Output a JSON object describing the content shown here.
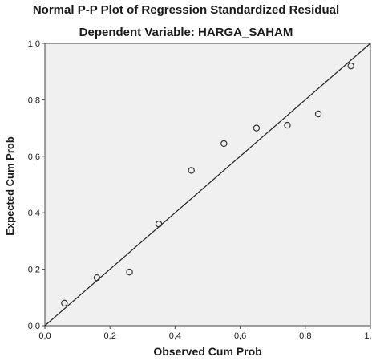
{
  "chart_data": {
    "type": "scatter",
    "title": "Normal P-P Plot of Regression Standardized Residual",
    "subtitle": "Dependent Variable: HARGA_SAHAM",
    "xlabel": "Observed Cum Prob",
    "ylabel": "Expected Cum Prob",
    "xlim": [
      0,
      1
    ],
    "ylim": [
      0,
      1
    ],
    "xticks": [
      "0,0",
      "0,2",
      "0,4",
      "0,6",
      "0,8",
      "1,0"
    ],
    "yticks": [
      "0,0",
      "0,2",
      "0,4",
      "0,6",
      "0,8",
      "1,0"
    ],
    "grid": false,
    "reference_line": {
      "from": [
        0,
        0
      ],
      "to": [
        1,
        1
      ]
    },
    "points": [
      {
        "x": 0.06,
        "y": 0.08
      },
      {
        "x": 0.16,
        "y": 0.17
      },
      {
        "x": 0.26,
        "y": 0.19
      },
      {
        "x": 0.35,
        "y": 0.36
      },
      {
        "x": 0.45,
        "y": 0.55
      },
      {
        "x": 0.55,
        "y": 0.645
      },
      {
        "x": 0.65,
        "y": 0.7
      },
      {
        "x": 0.745,
        "y": 0.71
      },
      {
        "x": 0.84,
        "y": 0.75
      },
      {
        "x": 0.94,
        "y": 0.92
      }
    ],
    "colors": {
      "plot_background": "#f0f0f0",
      "marker_edge": "#333333",
      "line": "#222222"
    }
  }
}
